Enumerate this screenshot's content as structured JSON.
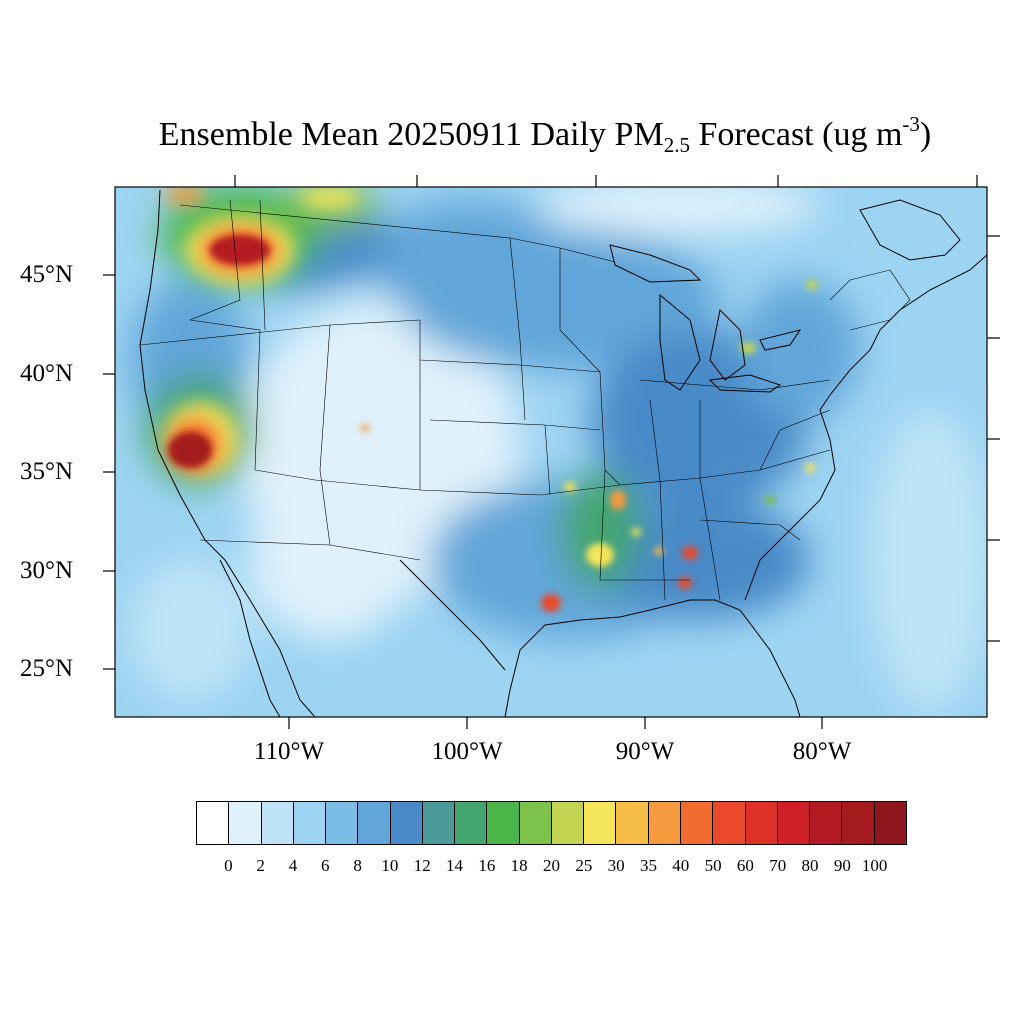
{
  "title": {
    "prefix": "Ensemble Mean 20250911 Daily PM",
    "subscript": "2.5",
    "middle": " Forecast (ug m",
    "superscript": "-3",
    "suffix": ")"
  },
  "lat_labels": [
    "45°N",
    "40°N",
    "35°N",
    "30°N",
    "25°N"
  ],
  "lon_labels": [
    "110°W",
    "100°W",
    "90°W",
    "80°W"
  ],
  "colorbar": {
    "labels": [
      "0",
      "2",
      "4",
      "6",
      "8",
      "10",
      "12",
      "14",
      "16",
      "18",
      "20",
      "25",
      "30",
      "35",
      "40",
      "50",
      "60",
      "70",
      "80",
      "90",
      "100"
    ],
    "colors": [
      "#ffffff",
      "#dff1fb",
      "#bfe4f7",
      "#9dd4f2",
      "#7cbde6",
      "#62a6d9",
      "#4a8ac8",
      "#4a9a9a",
      "#45a56e",
      "#4ab549",
      "#7dc24a",
      "#c3d452",
      "#f4e55a",
      "#f6bd48",
      "#f59a3e",
      "#f26b2f",
      "#ea4a2b",
      "#dd3027",
      "#cf2028",
      "#b41a23",
      "#a41a1f",
      "#8e161c"
    ]
  },
  "map": {
    "background": "#9dd4f2",
    "high_concentration_areas": [
      {
        "name": "northern-idaho-montana-smoke",
        "level": "90"
      },
      {
        "name": "sierra-nevada-smoke",
        "level": "100"
      },
      {
        "name": "lower-mississippi-valley",
        "level": "40"
      },
      {
        "name": "southeast-texas",
        "level": "50"
      },
      {
        "name": "southern-alabama",
        "level": "60"
      }
    ]
  }
}
